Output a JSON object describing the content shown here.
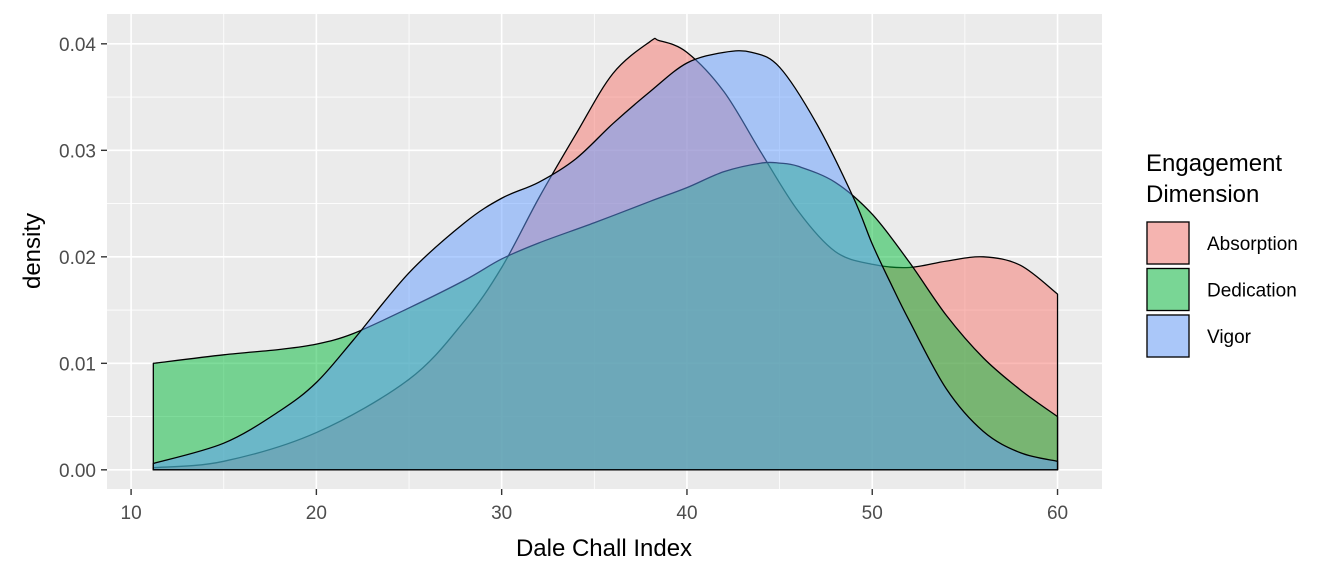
{
  "chart_data": {
    "type": "area",
    "title": "",
    "xlabel": "Dale Chall Index",
    "ylabel": "density",
    "xlim": [
      8.7,
      62.4
    ],
    "ylim": [
      -0.0018,
      0.0428
    ],
    "x_ticks": [
      10,
      20,
      30,
      40,
      50,
      60
    ],
    "y_ticks": [
      0.0,
      0.01,
      0.02,
      0.03,
      0.04
    ],
    "x_tick_labels": [
      "10",
      "20",
      "30",
      "40",
      "50",
      "60"
    ],
    "y_tick_labels": [
      "0.00",
      "0.01",
      "0.02",
      "0.03",
      "0.04"
    ],
    "grid": true,
    "legend_position": "right",
    "legend_title": [
      "Engagement",
      "Dimension"
    ],
    "series": [
      {
        "name": "Absorption",
        "color": "#F8766D",
        "x": [
          11.2,
          15,
          20,
          25,
          28,
          30,
          32,
          34,
          36,
          38,
          38.5,
          40,
          42,
          44,
          46,
          48,
          50,
          52,
          54,
          56,
          58,
          60
        ],
        "y": [
          0.0002,
          0.0008,
          0.0035,
          0.0085,
          0.014,
          0.019,
          0.0255,
          0.0315,
          0.0372,
          0.0402,
          0.0403,
          0.0392,
          0.0355,
          0.0298,
          0.0243,
          0.0205,
          0.0193,
          0.019,
          0.0196,
          0.02,
          0.0192,
          0.0165
        ]
      },
      {
        "name": "Dedication",
        "color": "#00BA38",
        "x": [
          11.2,
          15,
          18,
          20,
          22,
          25,
          28,
          30,
          32,
          35,
          38,
          40,
          42,
          44,
          45,
          46,
          48,
          50,
          52,
          54,
          56,
          58,
          60
        ],
        "y": [
          0.01,
          0.0108,
          0.0113,
          0.0118,
          0.0128,
          0.0152,
          0.0178,
          0.0198,
          0.0213,
          0.0232,
          0.0252,
          0.0265,
          0.028,
          0.0288,
          0.0288,
          0.0285,
          0.027,
          0.024,
          0.0195,
          0.0145,
          0.0105,
          0.0075,
          0.005
        ]
      },
      {
        "name": "Vigor",
        "color": "#619CFF",
        "x": [
          11.2,
          15,
          18,
          20,
          22,
          25,
          28,
          30,
          32,
          34,
          36,
          38,
          40,
          42,
          43.5,
          45,
          47,
          49,
          50,
          51,
          52,
          54,
          56,
          58,
          60
        ],
        "y": [
          0.0006,
          0.0025,
          0.0055,
          0.0082,
          0.0122,
          0.0185,
          0.0232,
          0.0255,
          0.027,
          0.0292,
          0.0325,
          0.0355,
          0.0382,
          0.0392,
          0.0392,
          0.0378,
          0.0325,
          0.0255,
          0.0212,
          0.0175,
          0.014,
          0.0076,
          0.0036,
          0.0016,
          0.0008
        ]
      }
    ]
  }
}
